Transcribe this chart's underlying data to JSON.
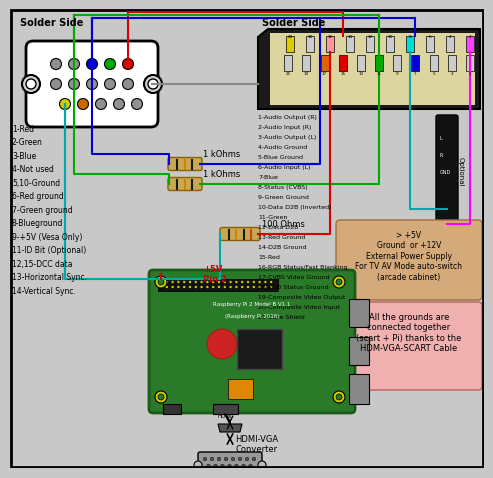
{
  "bg_color": "#c8c8c8",
  "vga_label": "Solder Side",
  "scart_label": "Solder Side",
  "vga_pin_labels": [
    "1-Red",
    "2-Green",
    "3-Blue",
    "4-Not used",
    "5,10-Ground",
    "6-Red ground",
    "7-Green ground",
    "8-Blueground",
    "9-+5V (Vesa Only)",
    "11-ID Bit (Optional)",
    "12,15-DCC data",
    "13-Horizontal Sync.",
    "14-Vertical Sync."
  ],
  "scart_pin_labels": [
    "1-Audio Output (R)",
    "2-Audio Input (R)",
    "3-Audio Output (L)",
    "4-Audio Ground",
    "5-Blue Ground",
    "6-Audio Input (L)",
    "7-Blue",
    "8-Status (CVBS)",
    "9-Green Ground",
    "10-Data D2B (Inverted)",
    "11-Green",
    "12-Data D2B",
    "13-Red Ground",
    "14-D2B Ground",
    "15-Red",
    "16-RGB Status/Fast Blanking",
    "17-CVBS Video Ground",
    "18-RGB Status Ground",
    "19-Composite Video Output",
    "20-Composite Video Input",
    "21-Case Shield"
  ],
  "note1": "> +5V\nGround  or +12V\nExternal Power Supply\nFor TV AV Mode auto-switch\n(arcade cabinet)",
  "note2": "All the grounds are\nconnected together\n(scart + Pi) thanks to the\nHDM-VGA-SCART Cable",
  "hdmi_label": "HDMI-VGA\nConverter",
  "res1_label": "1 kOhms",
  "res2_label": "1 kOhms",
  "res3_label": "100 Ohms",
  "plus5v_label": "+5V\nPin 2",
  "optional_label": "Optional"
}
